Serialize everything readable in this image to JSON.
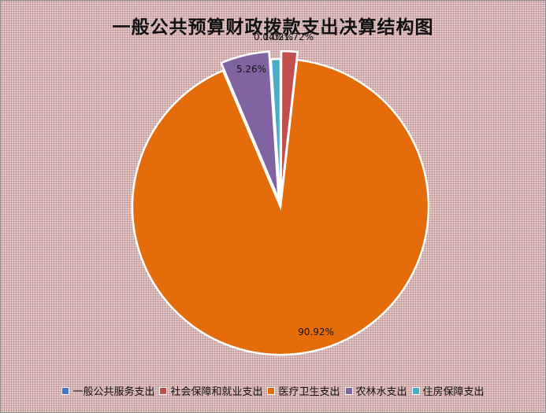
{
  "chart_data": {
    "type": "pie",
    "title": "一般公共预算财政拨款支出决算结构图",
    "categories": [
      "一般公共服务支出",
      "社会保障和就业支出",
      "医疗卫生支出",
      "农林水支出",
      "住房保障支出"
    ],
    "values": [
      0.04,
      1.72,
      90.92,
      5.26,
      1.02
    ],
    "labels": [
      "0.04%",
      "1.72%",
      "90.92%",
      "5.26%",
      "1.02%"
    ],
    "colors": [
      "#4472C4",
      "#C0504D",
      "#E46C0A",
      "#8064A2",
      "#4BACC6"
    ],
    "exploded": [
      false,
      true,
      false,
      true,
      false
    ],
    "legend_position": "bottom"
  }
}
